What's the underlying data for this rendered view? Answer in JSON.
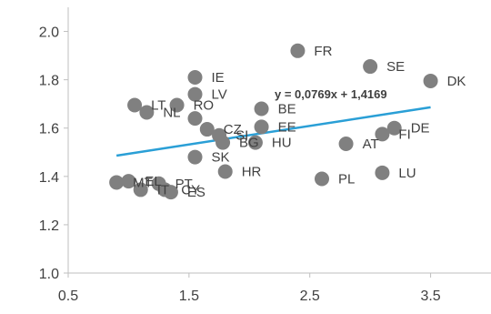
{
  "chart_data": {
    "type": "scatter",
    "xlim": [
      0.5,
      4.0
    ],
    "ylim": [
      1.0,
      2.1
    ],
    "x_ticks": [
      "0.5",
      "1.5",
      "2.5",
      "3.5"
    ],
    "x_tick_values": [
      0.5,
      1.5,
      2.5,
      3.5
    ],
    "y_ticks": [
      "1.0",
      "1.2",
      "1.4",
      "1.6",
      "1.8",
      "2.0"
    ],
    "y_tick_values": [
      1.0,
      1.2,
      1.4,
      1.6,
      1.8,
      2.0
    ],
    "grid": false,
    "marker_color": "#808080",
    "trend_color": "#2a9fd6",
    "axis_color": "#bfbfbf",
    "trendline": {
      "slope": 0.0769,
      "intercept": 1.4169,
      "x_range": [
        0.9,
        3.5
      ],
      "equation_label": "y = 0,0769x + 1,4169"
    },
    "points": [
      {
        "label": "FR",
        "x": 2.4,
        "y": 1.92
      },
      {
        "label": "SE",
        "x": 3.0,
        "y": 1.855
      },
      {
        "label": "DK",
        "x": 3.5,
        "y": 1.795
      },
      {
        "label": "IE",
        "x": 1.55,
        "y": 1.81
      },
      {
        "label": "LV",
        "x": 1.55,
        "y": 1.74
      },
      {
        "label": "RO",
        "x": 1.4,
        "y": 1.695
      },
      {
        "label": "LT",
        "x": 1.05,
        "y": 1.695
      },
      {
        "label": "NL",
        "x": 1.15,
        "y": 1.665
      },
      {
        "label": "",
        "x": 1.55,
        "y": 1.64
      },
      {
        "label": "BE",
        "x": 2.1,
        "y": 1.68
      },
      {
        "label": "CZ",
        "x": 1.65,
        "y": 1.595
      },
      {
        "label": "SI",
        "x": 1.75,
        "y": 1.57
      },
      {
        "label": "EE",
        "x": 2.1,
        "y": 1.605
      },
      {
        "label": "BG",
        "x": 1.78,
        "y": 1.54
      },
      {
        "label": "HU",
        "x": 2.05,
        "y": 1.54
      },
      {
        "label": "AT",
        "x": 2.8,
        "y": 1.535
      },
      {
        "label": "FI",
        "x": 3.1,
        "y": 1.575
      },
      {
        "label": "DE",
        "x": 3.2,
        "y": 1.6
      },
      {
        "label": "SK",
        "x": 1.55,
        "y": 1.48
      },
      {
        "label": "HR",
        "x": 1.8,
        "y": 1.42
      },
      {
        "label": "PL",
        "x": 2.6,
        "y": 1.39
      },
      {
        "label": "LU",
        "x": 3.1,
        "y": 1.415
      },
      {
        "label": "MT",
        "x": 0.9,
        "y": 1.375
      },
      {
        "label": "EL",
        "x": 1.0,
        "y": 1.38
      },
      {
        "label": "IT",
        "x": 1.1,
        "y": 1.345
      },
      {
        "label": "PT",
        "x": 1.25,
        "y": 1.37
      },
      {
        "label": "CY",
        "x": 1.3,
        "y": 1.345
      },
      {
        "label": "ES",
        "x": 1.35,
        "y": 1.335
      }
    ],
    "label_offsets": {}
  }
}
